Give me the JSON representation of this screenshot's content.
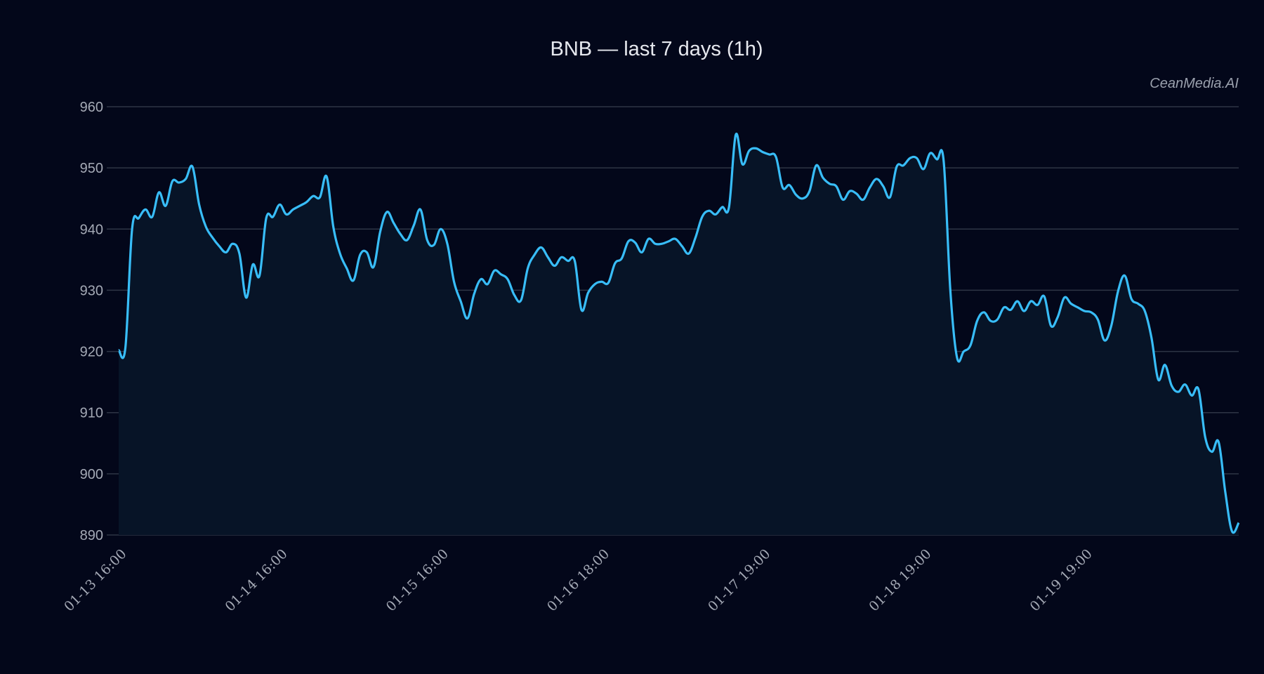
{
  "title": "BNB — last 7 days (1h)",
  "watermark": "CeanMedia.AI",
  "colors": {
    "background": "#03071a",
    "line": "#38bdf8",
    "area_fill": "#071427",
    "grid": "#2e3545",
    "text": "#a4a9b5"
  },
  "chart_data": {
    "type": "area",
    "title": "BNB — last 7 days (1h)",
    "xlabel": "",
    "ylabel": "",
    "ylim": [
      890,
      960
    ],
    "yticks": [
      890,
      900,
      910,
      920,
      930,
      940,
      950,
      960
    ],
    "xtick_labels": [
      "01-13 16:00",
      "01-14 16:00",
      "01-15 16:00",
      "01-16 18:00",
      "01-17 19:00",
      "01-18 19:00",
      "01-19 19:00"
    ],
    "xtick_index": [
      0,
      24,
      48,
      72,
      96,
      120,
      144
    ],
    "grid": true,
    "legend": null,
    "series": [
      {
        "name": "BNB",
        "interval": "1h",
        "values": [
          920.2,
          920.6,
          940,
          941.8,
          943.2,
          942,
          946,
          943.8,
          947.8,
          947.6,
          948.2,
          950.2,
          944,
          940.4,
          938.6,
          937.2,
          936.2,
          937.6,
          936,
          928.8,
          934.2,
          932.4,
          941.8,
          942,
          944,
          942.4,
          943.2,
          943.8,
          944.4,
          945.4,
          945.2,
          948.6,
          940.4,
          936,
          933.6,
          931.6,
          935.8,
          936.2,
          933.8,
          939.6,
          942.8,
          941,
          939.2,
          938.2,
          940.6,
          943.2,
          938.2,
          937.4,
          940,
          937.6,
          931.4,
          928.2,
          925.4,
          929.4,
          931.8,
          931,
          933.2,
          932.6,
          931.8,
          929.2,
          928.4,
          933.6,
          935.8,
          937,
          935.4,
          934,
          935.4,
          934.8,
          934.8,
          926.8,
          929.6,
          931,
          931.4,
          931.2,
          934.4,
          935.2,
          938,
          937.8,
          936.2,
          938.4,
          937.6,
          937.6,
          938,
          938.4,
          937.2,
          936,
          938.6,
          942,
          943,
          942.4,
          943.6,
          943.6,
          955.4,
          950.6,
          952.8,
          953.2,
          952.6,
          952.2,
          951.8,
          946.8,
          947.2,
          945.6,
          945,
          946.2,
          950.4,
          948.4,
          947.4,
          947,
          944.8,
          946.2,
          945.8,
          944.8,
          946.8,
          948.2,
          947,
          945.2,
          950.2,
          950.4,
          951.6,
          951.6,
          949.8,
          952.4,
          951.4,
          951.2,
          930,
          919,
          920,
          921,
          925,
          926.4,
          925,
          925.2,
          927.2,
          926.8,
          928.2,
          926.6,
          928.2,
          927.6,
          929,
          924.2,
          925.6,
          928.8,
          927.8,
          927.2,
          926.6,
          926.4,
          925.2,
          921.8,
          924.2,
          929.8,
          932.4,
          928.6,
          927.8,
          926.6,
          922.2,
          915.4,
          917.8,
          914.4,
          913.4,
          914.6,
          912.8,
          913.8,
          906,
          903.6,
          905.2,
          897,
          890.6,
          892
        ]
      }
    ]
  }
}
